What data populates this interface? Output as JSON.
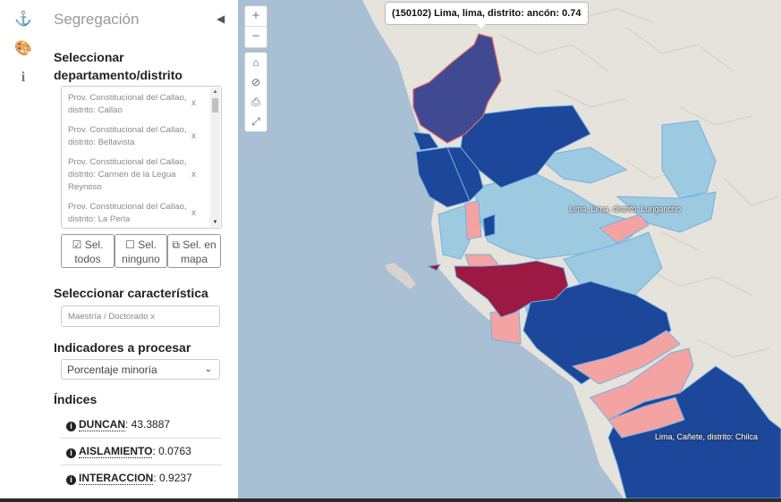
{
  "panel": {
    "title": "Segregación"
  },
  "rail": {
    "icons": [
      "anchor-icon",
      "palette-icon",
      "info-icon"
    ]
  },
  "territory": {
    "heading": "Seleccionar departamento/distrito",
    "items": [
      {
        "label": "Prov. Constitucional del Callao, distrito: Callao",
        "remove": "x"
      },
      {
        "label": "Prov. Constitucional del Callao, distrito: Bellavista",
        "remove": "x"
      },
      {
        "label": "Prov. Constitucional del Callao, distrito: Carmen de la Legua Reynoso",
        "remove": "x"
      },
      {
        "label": "Prov. Constitucional del Callao, distrito: La Perla",
        "remove": "x"
      }
    ],
    "buttons": {
      "select_all": "Sel. todos",
      "select_none": "Sel. ninguno",
      "select_map": "Sel. en mapa"
    }
  },
  "characteristic": {
    "heading": "Seleccionar característica",
    "tag": "Maestría / Doctorado",
    "tag_remove": "x"
  },
  "indicators": {
    "heading": "Indicadores a procesar",
    "selected": "Porcentaje minoría"
  },
  "indices": {
    "heading": "Índices",
    "items": [
      {
        "name": "DUNCAN",
        "value": "43.3887"
      },
      {
        "name": "AISLAMIENTO",
        "value": "0.0763"
      },
      {
        "name": "INTERACCION",
        "value": "0.9237"
      }
    ]
  },
  "map": {
    "tooltip": "(150102) Lima, lima, distrito: ancón: 0.74",
    "labels": [
      "Lima, Lima, distrito: Lurigancho",
      "Lima, Cañete, distrito: Chilca"
    ],
    "zoom_in": "+",
    "zoom_out": "−",
    "colors": {
      "water": "#a9bfd3",
      "land": "#e7e3de",
      "dark_blue": "#1d479b",
      "light_blue": "#9ecae1",
      "pink": "#f4a3a3",
      "crimson": "#9b1943",
      "highlight": "#404a93"
    }
  }
}
